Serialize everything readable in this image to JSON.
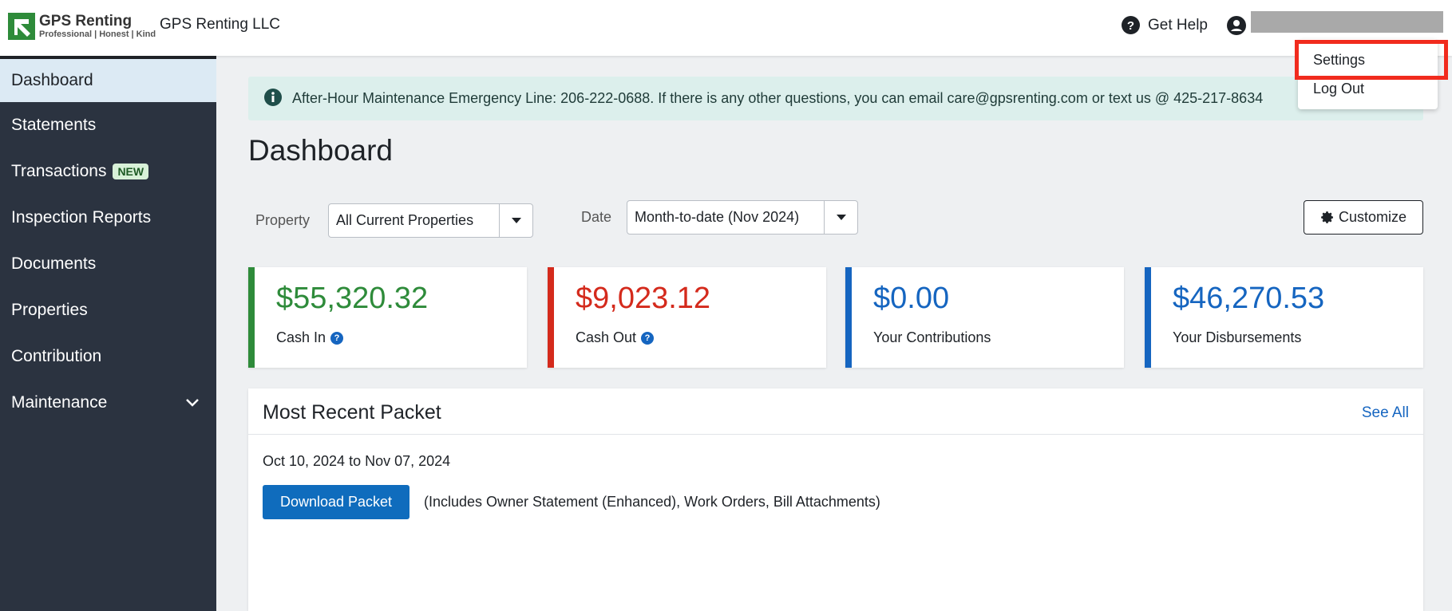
{
  "header": {
    "brand": "GPS Renting",
    "tagline": "Professional | Honest | Kind",
    "company": "GPS Renting LLC",
    "help": "Get Help"
  },
  "sidebar": {
    "items": [
      {
        "label": "Dashboard"
      },
      {
        "label": "Statements"
      },
      {
        "label": "Transactions",
        "badge": "NEW"
      },
      {
        "label": "Inspection Reports"
      },
      {
        "label": "Documents"
      },
      {
        "label": "Properties"
      },
      {
        "label": "Contribution"
      },
      {
        "label": "Maintenance"
      }
    ]
  },
  "banner": "After-Hour Maintenance Emergency Line: 206-222-0688. If there is any other questions, you can email care@gpsrenting.com or text us @ 425-217-8634",
  "page_title": "Dashboard",
  "filters": {
    "property_label": "Property",
    "property_value": "All Current Properties",
    "date_label": "Date",
    "date_value": "Month-to-date (Nov 2024)",
    "customize": "Customize"
  },
  "cards": [
    {
      "value": "$55,320.32",
      "label": "Cash In"
    },
    {
      "value": "$9,023.12",
      "label": "Cash Out"
    },
    {
      "value": "$0.00",
      "label": "Your Contributions"
    },
    {
      "value": "$46,270.53",
      "label": "Your Disbursements"
    }
  ],
  "packet": {
    "title": "Most Recent Packet",
    "see_all": "See All",
    "range": "Oct 10, 2024 to Nov 07, 2024",
    "button": "Download Packet",
    "note": "(Includes Owner Statement (Enhanced), Work Orders, Bill Attachments)"
  },
  "user_menu": {
    "items": [
      "Settings",
      "Log Out"
    ]
  }
}
